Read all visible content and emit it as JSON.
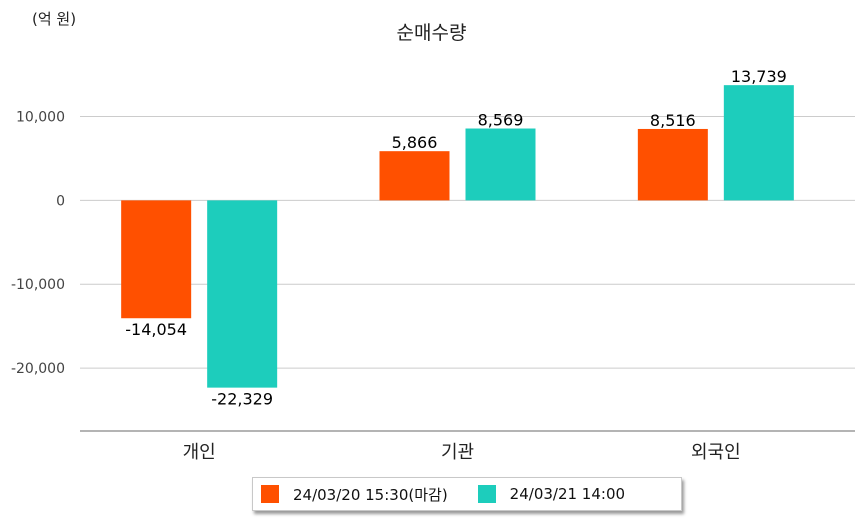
{
  "unit_label": "(억 원)",
  "chart_data": {
    "type": "bar",
    "title": "순매수량",
    "categories": [
      "개인",
      "기관",
      "외국인"
    ],
    "series": [
      {
        "name": "24/03/20 15:30(마감)",
        "color": "#ff5000",
        "values": [
          -14054,
          5866,
          8516
        ]
      },
      {
        "name": "24/03/21 14:00",
        "color": "#1dcdbc",
        "values": [
          -22329,
          8569,
          13739
        ]
      }
    ],
    "ylim": [
      -27500,
      16500
    ],
    "yticks": [
      10000,
      0,
      -10000,
      -20000
    ],
    "ytick_labels": [
      "10,000",
      "0",
      "-10,000",
      "-20,000"
    ],
    "grid": true,
    "legend_position": "bottom"
  }
}
